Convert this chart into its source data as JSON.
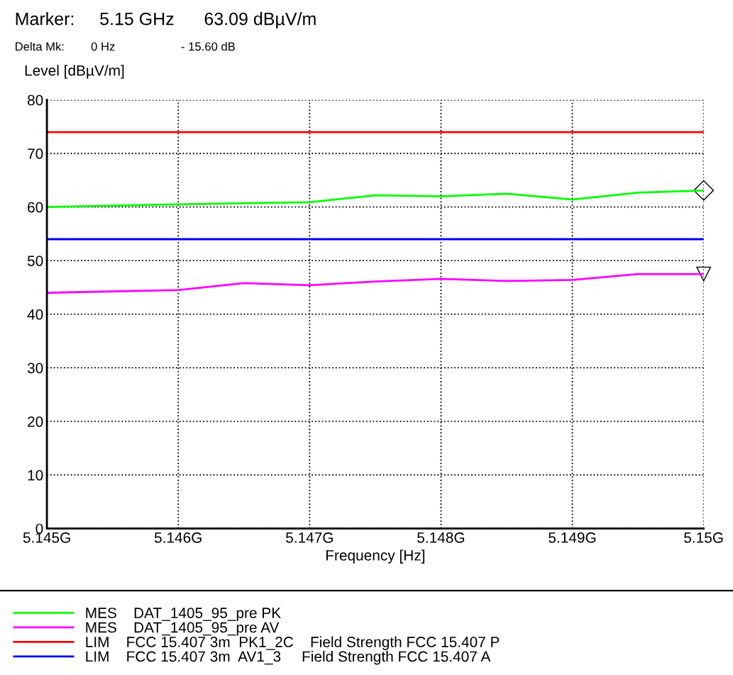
{
  "chart_data": {
    "type": "line",
    "xlabel": "Frequency [Hz]",
    "ylabel": "Level [dBµV/m]",
    "annotations": [
      "Marker:     5.15 GHz      63.09 dBµV/m",
      "Delta Mk:        0 Hz                    - 15.60 dB"
    ],
    "series": [
      {
        "name": "MES    DAT_1405_95_pre PK",
        "color": "#00ff00",
        "x": [
          5.145,
          5.146,
          5.147,
          5.1475,
          5.148,
          5.1485,
          5.149,
          5.1495,
          5.15
        ],
        "values": [
          60.0,
          60.5,
          60.9,
          62.2,
          62.0,
          62.5,
          61.4,
          62.7,
          63.1
        ]
      },
      {
        "name": "MES    DAT_1405_95_pre AV",
        "color": "#ff00ff",
        "x": [
          5.145,
          5.146,
          5.1465,
          5.147,
          5.1475,
          5.148,
          5.1485,
          5.149,
          5.1495,
          5.15
        ],
        "values": [
          44.0,
          44.5,
          45.8,
          45.4,
          46.1,
          46.6,
          46.2,
          46.4,
          47.5,
          47.5
        ]
      },
      {
        "name": "LIM    FCC 15.407 3m  PK1_2C    Field Strength FCC 15.407 P",
        "color": "#ff0000",
        "x": [
          5.145,
          5.15
        ],
        "values": [
          74,
          74
        ]
      },
      {
        "name": "LIM    FCC 15.407 3m  AV1_3     Field Strength FCC 15.407 A",
        "color": "#0000ff",
        "x": [
          5.145,
          5.15
        ],
        "values": [
          54,
          54
        ]
      }
    ],
    "xlim": [
      5.145,
      5.15
    ],
    "xticks": [
      {
        "value": 5.145,
        "label": "5.145G"
      },
      {
        "value": 5.146,
        "label": "5.146G"
      },
      {
        "value": 5.147,
        "label": "5.147G"
      },
      {
        "value": 5.148,
        "label": "5.148G"
      },
      {
        "value": 5.149,
        "label": "5.149G"
      },
      {
        "value": 5.15,
        "label": "5.15G"
      }
    ],
    "ylim": [
      0,
      80
    ],
    "yticks": [
      0,
      10,
      20,
      30,
      40,
      50,
      60,
      70,
      80
    ],
    "grid": true,
    "legend": "bottom",
    "line_style": "solid",
    "marker": "none"
  }
}
